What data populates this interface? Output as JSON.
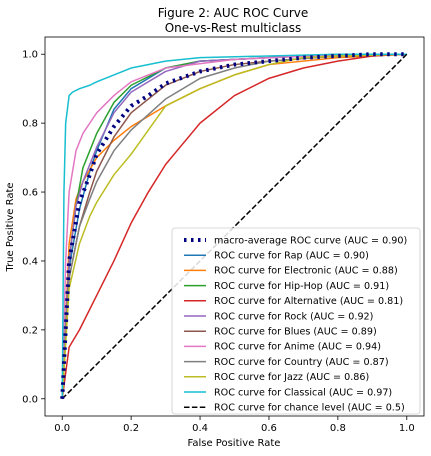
{
  "chart_data": {
    "type": "line",
    "title": "Figure 2: AUC ROC Curve",
    "subtitle": "One-vs-Rest multiclass",
    "xlabel": "False Positive Rate",
    "ylabel": "True Positive Rate",
    "xlim": [
      -0.05,
      1.05
    ],
    "ylim": [
      -0.05,
      1.05
    ],
    "xticks": [
      "0.0",
      "0.2",
      "0.4",
      "0.6",
      "0.8",
      "1.0"
    ],
    "yticks": [
      "0.0",
      "0.2",
      "0.4",
      "0.6",
      "0.8",
      "1.0"
    ],
    "grid": false,
    "legend_position": "lower-right",
    "series": [
      {
        "name": "macro-average ROC curve (AUC = 0.90)",
        "color": "#000080",
        "style": "dotted-thick",
        "x": [
          0,
          0.02,
          0.05,
          0.08,
          0.1,
          0.15,
          0.2,
          0.25,
          0.3,
          0.4,
          0.5,
          0.6,
          0.7,
          0.8,
          0.9,
          1.0
        ],
        "y": [
          0,
          0.4,
          0.57,
          0.65,
          0.71,
          0.79,
          0.85,
          0.88,
          0.915,
          0.95,
          0.97,
          0.98,
          0.99,
          0.995,
          1.0,
          1.0
        ]
      },
      {
        "name": "ROC curve for Rap (AUC = 0.90)",
        "color": "#1f77b4",
        "style": "solid",
        "x": [
          0,
          0.02,
          0.05,
          0.08,
          0.1,
          0.15,
          0.2,
          0.3,
          0.4,
          0.6,
          0.8,
          1.0
        ],
        "y": [
          0,
          0.38,
          0.55,
          0.66,
          0.72,
          0.84,
          0.9,
          0.96,
          0.98,
          0.99,
          1.0,
          1.0
        ]
      },
      {
        "name": "ROC curve for Electronic (AUC = 0.88)",
        "color": "#ff7f0e",
        "style": "solid",
        "x": [
          0,
          0.02,
          0.04,
          0.06,
          0.1,
          0.15,
          0.2,
          0.3,
          0.4,
          0.5,
          0.6,
          0.8,
          1.0
        ],
        "y": [
          0,
          0.45,
          0.58,
          0.63,
          0.7,
          0.75,
          0.79,
          0.85,
          0.9,
          0.94,
          0.97,
          0.99,
          1.0
        ]
      },
      {
        "name": "ROC curve for Hip-Hop (AUC = 0.91)",
        "color": "#2ca02c",
        "style": "solid",
        "x": [
          0,
          0.02,
          0.04,
          0.06,
          0.1,
          0.15,
          0.2,
          0.3,
          0.4,
          0.6,
          0.8,
          1.0
        ],
        "y": [
          0,
          0.4,
          0.56,
          0.67,
          0.77,
          0.86,
          0.91,
          0.96,
          0.98,
          0.99,
          1.0,
          1.0
        ]
      },
      {
        "name": "ROC curve for Alternative (AUC = 0.81)",
        "color": "#d62728",
        "style": "solid",
        "x": [
          0,
          0.02,
          0.05,
          0.1,
          0.15,
          0.2,
          0.25,
          0.3,
          0.35,
          0.4,
          0.5,
          0.6,
          0.7,
          0.8,
          0.9,
          1.0
        ],
        "y": [
          0,
          0.15,
          0.2,
          0.3,
          0.4,
          0.51,
          0.6,
          0.68,
          0.74,
          0.8,
          0.88,
          0.93,
          0.96,
          0.98,
          0.995,
          1.0
        ]
      },
      {
        "name": "ROC curve for Rock (AUC = 0.92)",
        "color": "#9467bd",
        "style": "solid",
        "x": [
          0,
          0.02,
          0.04,
          0.06,
          0.08,
          0.1,
          0.15,
          0.2,
          0.3,
          0.4,
          0.6,
          0.8,
          1.0
        ],
        "y": [
          0,
          0.4,
          0.56,
          0.63,
          0.68,
          0.73,
          0.83,
          0.89,
          0.95,
          0.98,
          0.99,
          1.0,
          1.0
        ]
      },
      {
        "name": "ROC curve for Blues (AUC = 0.89)",
        "color": "#8c564b",
        "style": "solid",
        "x": [
          0,
          0.02,
          0.05,
          0.08,
          0.1,
          0.15,
          0.2,
          0.3,
          0.4,
          0.5,
          0.6,
          0.8,
          1.0
        ],
        "y": [
          0,
          0.35,
          0.5,
          0.6,
          0.66,
          0.76,
          0.83,
          0.91,
          0.95,
          0.97,
          0.98,
          0.995,
          1.0
        ]
      },
      {
        "name": "ROC curve for Anime (AUC = 0.94)",
        "color": "#e377c2",
        "style": "solid",
        "x": [
          0,
          0.01,
          0.02,
          0.04,
          0.06,
          0.08,
          0.1,
          0.15,
          0.2,
          0.3,
          0.5,
          0.8,
          1.0
        ],
        "y": [
          0,
          0.4,
          0.6,
          0.72,
          0.77,
          0.8,
          0.83,
          0.88,
          0.92,
          0.96,
          0.985,
          0.998,
          1.0
        ]
      },
      {
        "name": "ROC curve for Country (AUC = 0.87)",
        "color": "#7f7f7f",
        "style": "solid",
        "x": [
          0,
          0.02,
          0.05,
          0.08,
          0.1,
          0.15,
          0.2,
          0.3,
          0.4,
          0.5,
          0.6,
          0.8,
          1.0
        ],
        "y": [
          0,
          0.35,
          0.5,
          0.58,
          0.63,
          0.72,
          0.78,
          0.87,
          0.93,
          0.96,
          0.98,
          0.995,
          1.0
        ]
      },
      {
        "name": "ROC curve for Jazz (AUC = 0.86)",
        "color": "#bcbd22",
        "style": "solid",
        "x": [
          0,
          0.02,
          0.05,
          0.08,
          0.1,
          0.15,
          0.2,
          0.25,
          0.3,
          0.4,
          0.5,
          0.6,
          0.7,
          0.8,
          1.0
        ],
        "y": [
          0,
          0.32,
          0.45,
          0.53,
          0.57,
          0.65,
          0.71,
          0.78,
          0.85,
          0.9,
          0.94,
          0.97,
          0.99,
          0.995,
          1.0
        ]
      },
      {
        "name": "ROC curve for Classical (AUC = 0.97)",
        "color": "#17becf",
        "style": "solid",
        "x": [
          0,
          0.005,
          0.01,
          0.02,
          0.03,
          0.05,
          0.08,
          0.1,
          0.15,
          0.2,
          0.3,
          0.4,
          0.6,
          0.8,
          1.0
        ],
        "y": [
          0,
          0.6,
          0.8,
          0.88,
          0.89,
          0.9,
          0.91,
          0.92,
          0.94,
          0.96,
          0.98,
          0.99,
          0.995,
          1.0,
          1.0
        ]
      },
      {
        "name": "ROC curve for chance level (AUC = 0.5)",
        "color": "#000000",
        "style": "dashed",
        "x": [
          0,
          1
        ],
        "y": [
          0,
          1
        ]
      }
    ]
  }
}
